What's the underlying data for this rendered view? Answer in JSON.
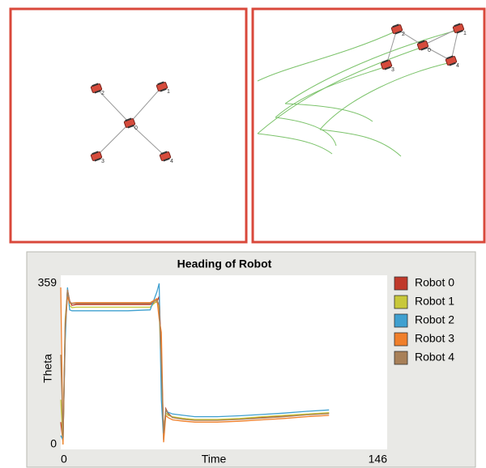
{
  "left_view": {
    "robot_labels": [
      "0",
      "1",
      "2",
      "3",
      "4"
    ]
  },
  "right_view": {
    "robot_labels": [
      "0",
      "1",
      "2",
      "3",
      "4"
    ]
  },
  "chart_data": {
    "type": "line",
    "title": "Heading of Robot",
    "x_label": "Time",
    "y_label": "Theta",
    "x": [
      0,
      1,
      2,
      3,
      4,
      5,
      7,
      10,
      20,
      30,
      40,
      43,
      44,
      45,
      46,
      47,
      48,
      50,
      55,
      60,
      70,
      80,
      90,
      100,
      110,
      120
    ],
    "xlim": [
      0,
      146
    ],
    "xticks": [
      0,
      146
    ],
    "ylim": [
      0,
      359
    ],
    "yticks": [
      0,
      359
    ],
    "series": [
      {
        "name": "Robot 0",
        "color": "#c0392b",
        "values": [
          50,
          5,
          250,
          345,
          320,
          310,
          312,
          312,
          312,
          312,
          312,
          318,
          330,
          200,
          20,
          80,
          70,
          60,
          58,
          55,
          55,
          57,
          60,
          63,
          67,
          70
        ]
      },
      {
        "name": "Robot 1",
        "color": "#c8c83a",
        "values": [
          100,
          0,
          280,
          340,
          310,
          305,
          306,
          306,
          306,
          306,
          306,
          320,
          300,
          150,
          30,
          70,
          65,
          62,
          58,
          56,
          56,
          58,
          62,
          65,
          68,
          71
        ]
      },
      {
        "name": "Robot 2",
        "color": "#3fa0d0",
        "values": [
          20,
          10,
          230,
          350,
          300,
          298,
          298,
          298,
          298,
          298,
          300,
          340,
          359,
          100,
          10,
          75,
          72,
          68,
          65,
          62,
          62,
          64,
          67,
          70,
          74,
          77
        ]
      },
      {
        "name": "Robot 3",
        "color": "#f07f2a",
        "values": [
          350,
          0,
          260,
          330,
          315,
          315,
          316,
          316,
          316,
          316,
          316,
          325,
          280,
          250,
          5,
          65,
          60,
          55,
          52,
          50,
          50,
          52,
          55,
          58,
          62,
          65
        ]
      },
      {
        "name": "Robot 4",
        "color": "#a88058",
        "values": [
          200,
          15,
          270,
          345,
          318,
          314,
          314,
          314,
          314,
          314,
          314,
          322,
          310,
          180,
          25,
          78,
          68,
          60,
          56,
          54,
          54,
          56,
          59,
          62,
          66,
          69
        ]
      }
    ]
  }
}
